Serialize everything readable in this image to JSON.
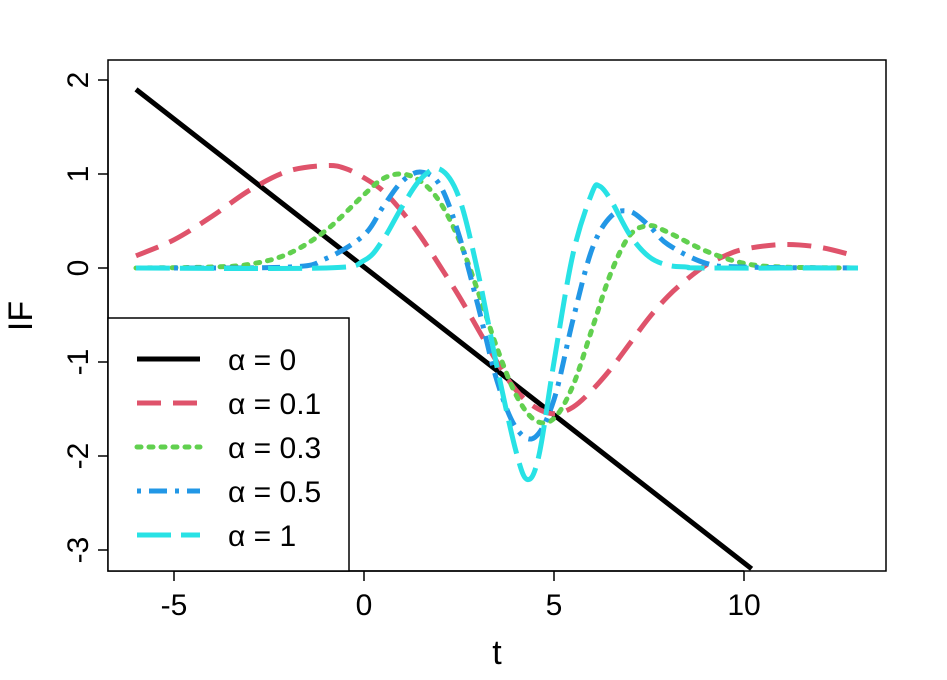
{
  "chart_data": {
    "type": "line",
    "xlabel": "t",
    "ylabel": "IF",
    "xlim": [
      -6.5,
      13.8
    ],
    "ylim": [
      -3.2,
      2.2
    ],
    "x_ticks": [
      -5,
      0,
      5,
      10
    ],
    "x_tick_labels": [
      "-5",
      "0",
      "5",
      "10"
    ],
    "y_ticks": [
      -3,
      -2,
      -1,
      0,
      1,
      2
    ],
    "y_tick_labels": [
      "-3",
      "-2",
      "-1",
      "0",
      "1",
      "2"
    ],
    "grid": false,
    "legend_position": "bottom-left",
    "series": [
      {
        "name": "α = 0",
        "color": "#000000",
        "dash": "solid",
        "x": [
          -6,
          10.2
        ],
        "y": [
          1.9,
          -3.2
        ]
      },
      {
        "name": "α = 0.1",
        "color": "#DF536B",
        "dash": "dashed",
        "x": [
          -6,
          -5,
          -4,
          -3,
          -2,
          -1,
          -0.5,
          0,
          0.5,
          1,
          1.5,
          2,
          2.5,
          3,
          3.5,
          4,
          4.5,
          5,
          5.5,
          6,
          6.5,
          7,
          7.5,
          8,
          8.5,
          9,
          9.5,
          10,
          11,
          12,
          13
        ],
        "y": [
          0.13,
          0.3,
          0.55,
          0.83,
          1.03,
          1.09,
          1.06,
          0.96,
          0.82,
          0.6,
          0.33,
          0.02,
          -0.3,
          -0.65,
          -1.0,
          -1.3,
          -1.48,
          -1.55,
          -1.48,
          -1.3,
          -1.07,
          -0.8,
          -0.53,
          -0.3,
          -0.12,
          0.03,
          0.13,
          0.2,
          0.25,
          0.22,
          0.12
        ]
      },
      {
        "name": "α = 0.3",
        "color": "#61D04F",
        "dash": "dotted",
        "x": [
          -6,
          -4,
          -3,
          -2,
          -1,
          0,
          0.5,
          1,
          1.5,
          2,
          2.5,
          3,
          3.5,
          4,
          4.5,
          5,
          5.5,
          6,
          6.5,
          7,
          7.5,
          8,
          9,
          10,
          11,
          13
        ],
        "y": [
          0,
          0.01,
          0.04,
          0.15,
          0.4,
          0.78,
          0.95,
          1.0,
          0.92,
          0.7,
          0.3,
          -0.25,
          -0.85,
          -1.35,
          -1.62,
          -1.6,
          -1.25,
          -0.65,
          -0.05,
          0.35,
          0.45,
          0.38,
          0.18,
          0.05,
          0.01,
          0
        ]
      },
      {
        "name": "α = 0.5",
        "color": "#2297E6",
        "dash": "dotdash",
        "x": [
          -6,
          -2,
          -1,
          0,
          0.5,
          1,
          1.5,
          2,
          2.5,
          3,
          3.5,
          4,
          4.5,
          5,
          5.5,
          6,
          6.5,
          7,
          7.5,
          8,
          9,
          10,
          13
        ],
        "y": [
          0,
          0.01,
          0.1,
          0.35,
          0.65,
          0.92,
          1.02,
          0.88,
          0.35,
          -0.4,
          -1.2,
          -1.7,
          -1.8,
          -1.4,
          -0.55,
          0.2,
          0.55,
          0.6,
          0.45,
          0.25,
          0.05,
          0.01,
          0
        ]
      },
      {
        "name": "α = 1",
        "color": "#28E2E5",
        "dash": "longdash",
        "x": [
          -6,
          -1,
          0,
          0.5,
          1,
          1.5,
          2,
          2.5,
          3,
          3.5,
          4,
          4.3,
          4.6,
          5,
          5.5,
          6,
          6.2,
          6.5,
          7,
          7.5,
          8,
          8.5,
          9,
          13
        ],
        "y": [
          0,
          0,
          0.08,
          0.3,
          0.65,
          0.95,
          1.05,
          0.75,
          -0.05,
          -1.05,
          -1.95,
          -2.25,
          -2.0,
          -1.0,
          0.15,
          0.8,
          0.87,
          0.72,
          0.35,
          0.12,
          0.03,
          0.01,
          0,
          0
        ]
      }
    ]
  }
}
